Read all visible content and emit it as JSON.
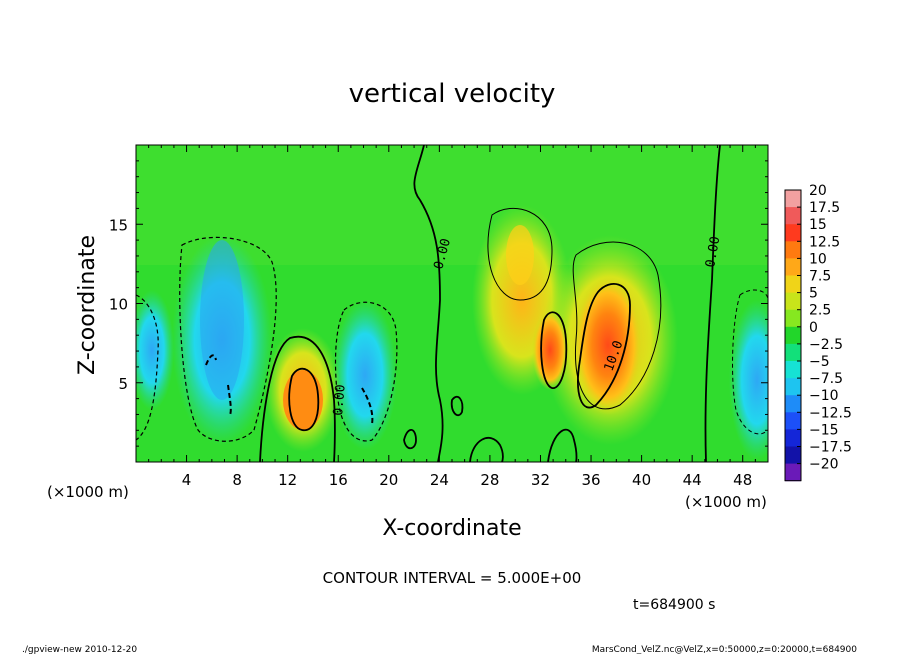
{
  "chart_data": {
    "type": "heatmap",
    "title": "vertical velocity",
    "xlabel": "X-coordinate",
    "ylabel": "Z-coordinate",
    "x_unit_left": "(×1000 m)",
    "x_unit_right": "(×1000 m)",
    "xlim": [
      0,
      50
    ],
    "ylim": [
      0,
      20
    ],
    "x_ticks": [
      4,
      8,
      12,
      16,
      20,
      24,
      28,
      32,
      36,
      40,
      44,
      48
    ],
    "y_ticks": [
      5,
      10,
      15
    ],
    "colorbar": {
      "labels": [
        "20",
        "17.5",
        "15",
        "12.5",
        "10",
        "7.5",
        "5",
        "2.5",
        "0",
        "−2.5",
        "−5",
        "−7.5",
        "−10",
        "−12.5",
        "−15",
        "−17.5",
        "−20"
      ],
      "colors": [
        "#f2a0a0",
        "#f05a5a",
        "#ff3a1e",
        "#ff7a10",
        "#ffa818",
        "#f0d418",
        "#c8e41a",
        "#86e820",
        "#22d62a",
        "#12e07a",
        "#16e2d4",
        "#1ec4f0",
        "#1e8cf8",
        "#1c50f8",
        "#1426d8",
        "#1212a8",
        "#6a1ab8"
      ]
    },
    "contour_labels": [
      "0.00",
      "0.00",
      "0.00",
      "10.0"
    ],
    "contour_interval": "CONTOUR INTERVAL = 5.000E+00",
    "time": "t=684900 s",
    "grid": false
  },
  "footer": {
    "left": "./gpview-new  2010-12-20",
    "right": "MarsCond_VelZ.nc@VelZ,x=0:50000,z=0:20000,t=684900"
  }
}
